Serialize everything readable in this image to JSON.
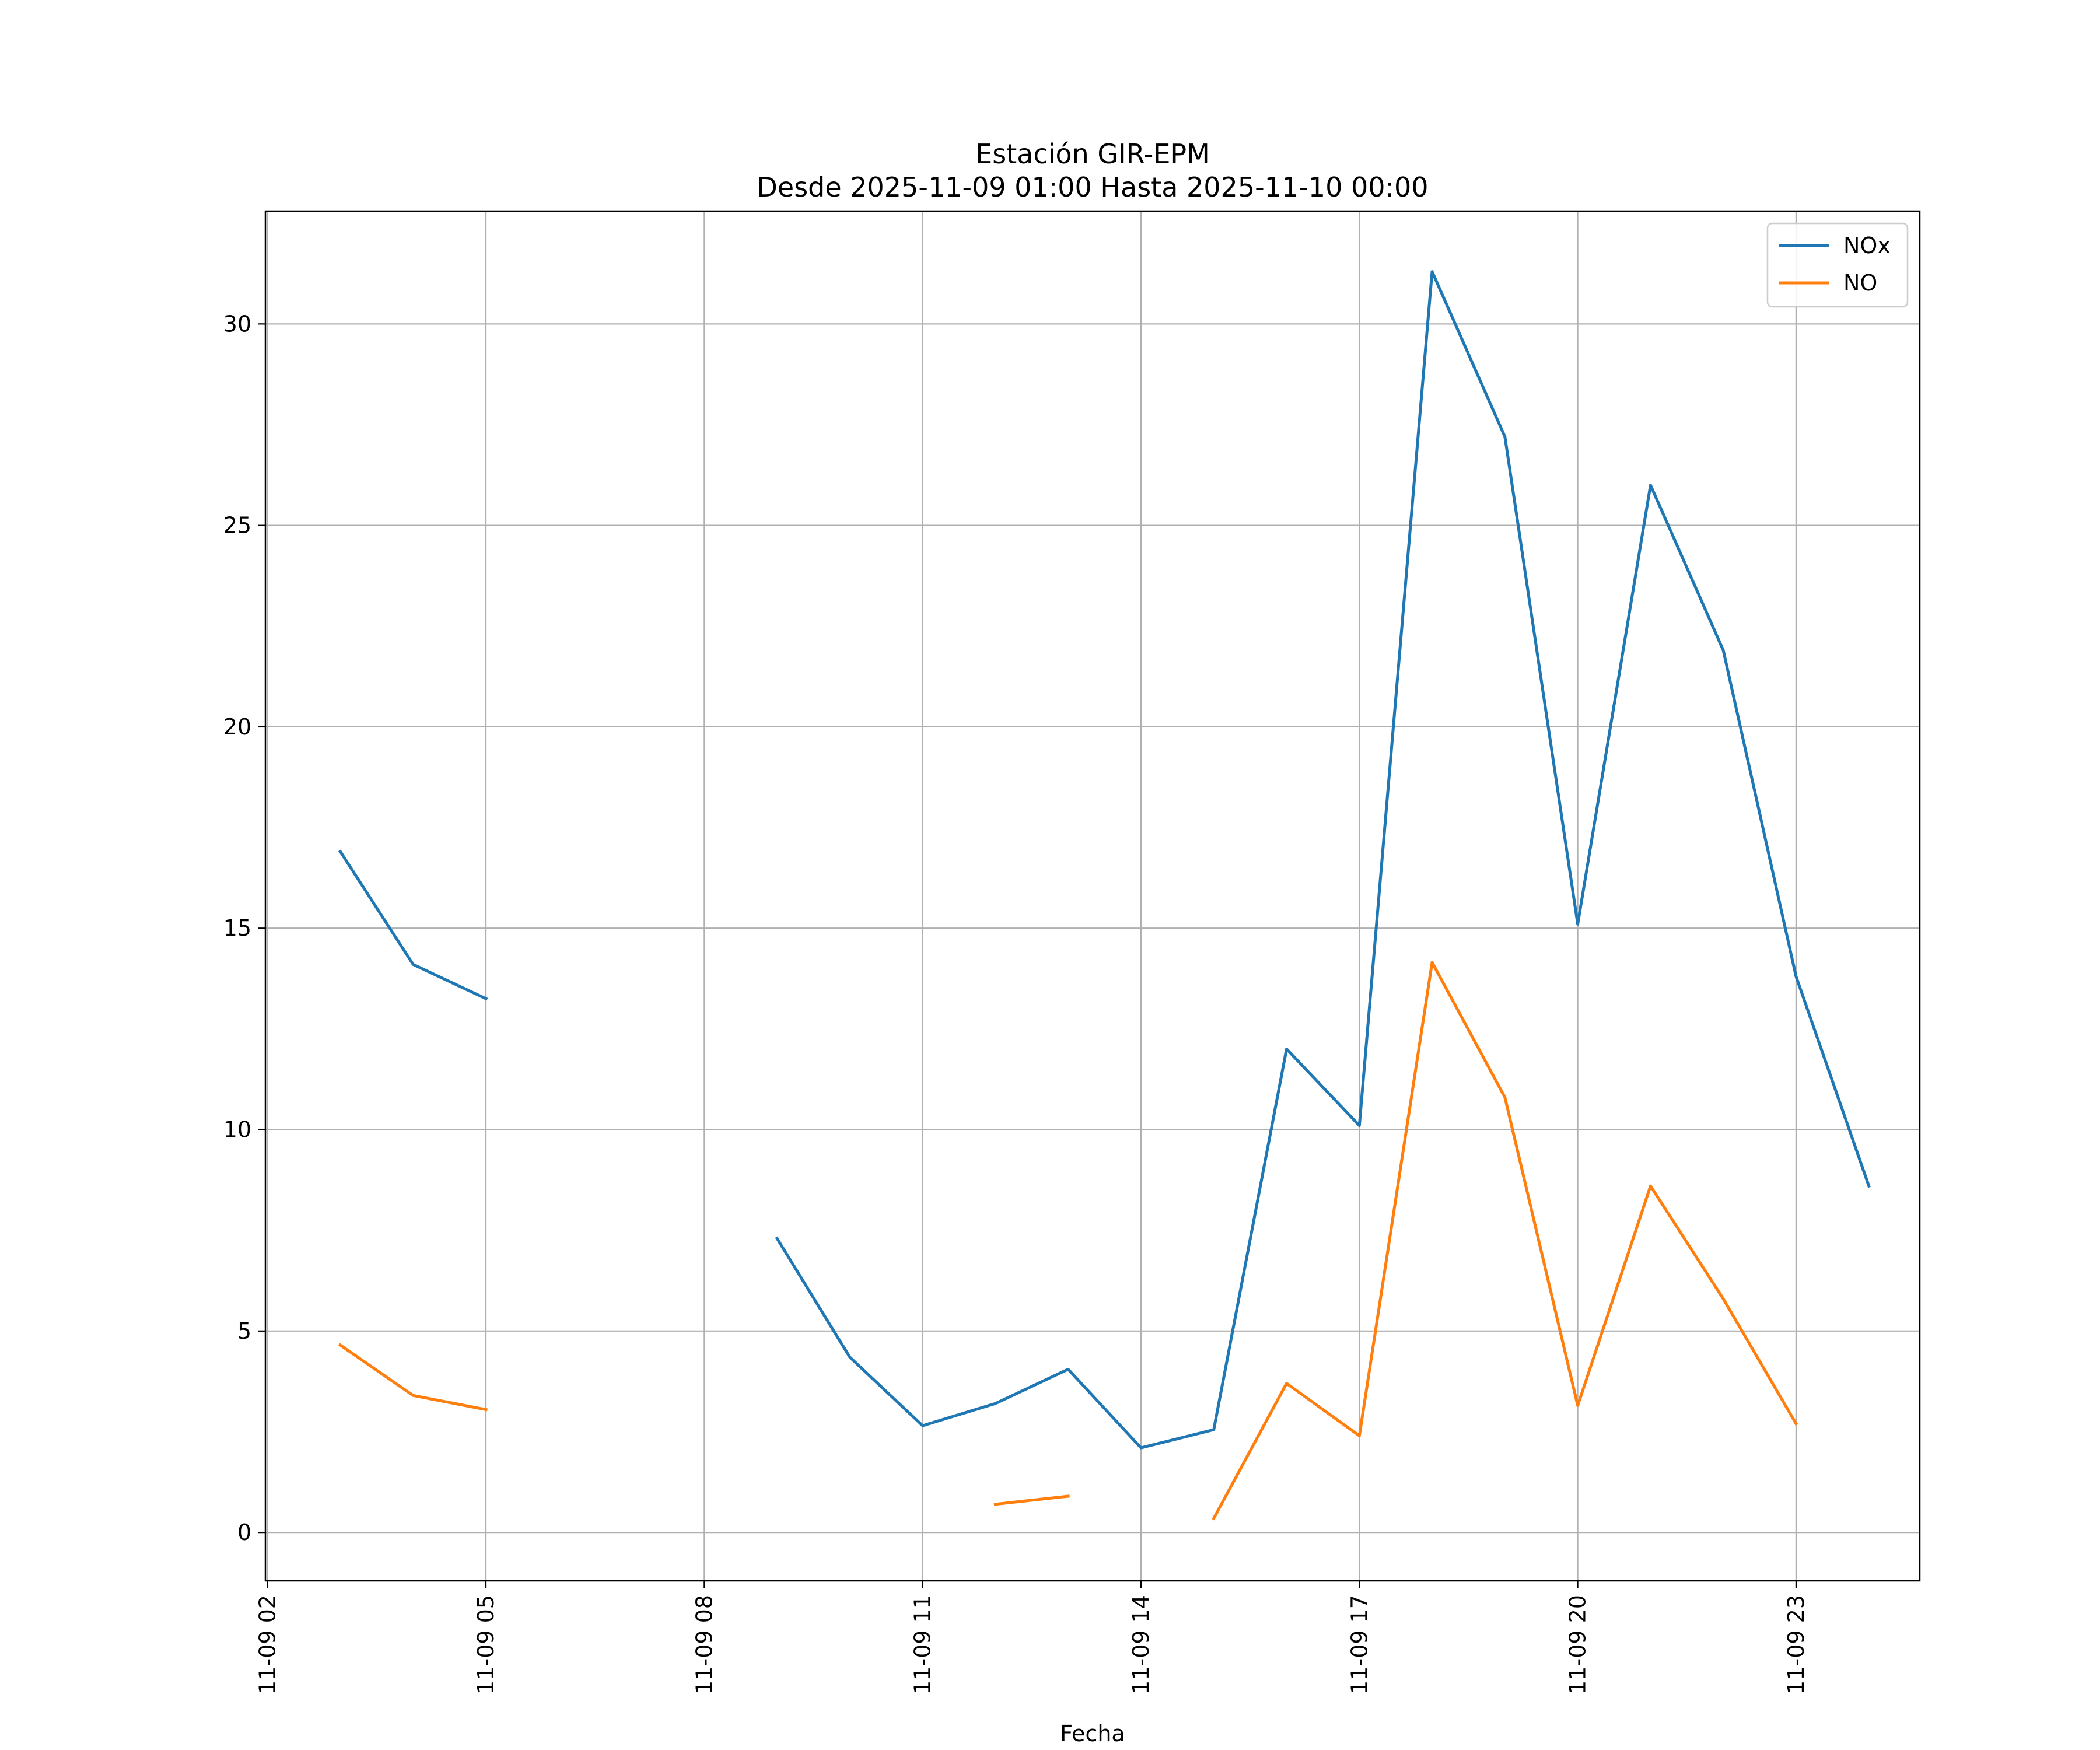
{
  "chart_data": {
    "type": "line",
    "title": "Estación GIR-EPM",
    "subtitle": "Desde 2025-11-09 01:00 Hasta 2025-11-10 00:00",
    "xlabel": "Fecha",
    "ylabel": "",
    "x_unit": "hour of 2025-11-09",
    "xlim": [
      1.97,
      24.7
    ],
    "ylim": [
      -1.2,
      32.8
    ],
    "x_ticks": [
      2,
      5,
      8,
      11,
      14,
      17,
      20,
      23
    ],
    "x_tick_labels": [
      "11-09 02",
      "11-09 05",
      "11-09 08",
      "11-09 11",
      "11-09 14",
      "11-09 17",
      "11-09 20",
      "11-09 23"
    ],
    "y_ticks": [
      0,
      5,
      10,
      15,
      20,
      25,
      30
    ],
    "y_tick_labels": [
      "0",
      "5",
      "10",
      "15",
      "20",
      "25",
      "30"
    ],
    "grid": true,
    "legend_position": "top-right",
    "x": [
      3,
      4,
      5,
      6,
      7,
      8,
      9,
      10,
      11,
      12,
      13,
      14,
      15,
      16,
      17,
      18,
      19,
      20,
      21,
      22,
      23,
      24
    ],
    "series": [
      {
        "name": "NOx",
        "color": "#1f77b4",
        "values": [
          16.9,
          14.1,
          13.25,
          null,
          null,
          null,
          7.3,
          4.35,
          2.65,
          3.2,
          4.05,
          2.1,
          2.55,
          12.0,
          10.1,
          31.3,
          27.2,
          15.1,
          26.0,
          21.9,
          13.8,
          8.6
        ]
      },
      {
        "name": "NO",
        "color": "#ff7f0e",
        "values": [
          4.65,
          3.4,
          3.05,
          null,
          null,
          null,
          null,
          null,
          null,
          0.7,
          0.9,
          null,
          0.35,
          3.7,
          2.4,
          14.15,
          10.8,
          3.15,
          8.6,
          5.8,
          2.7,
          null
        ]
      }
    ]
  }
}
